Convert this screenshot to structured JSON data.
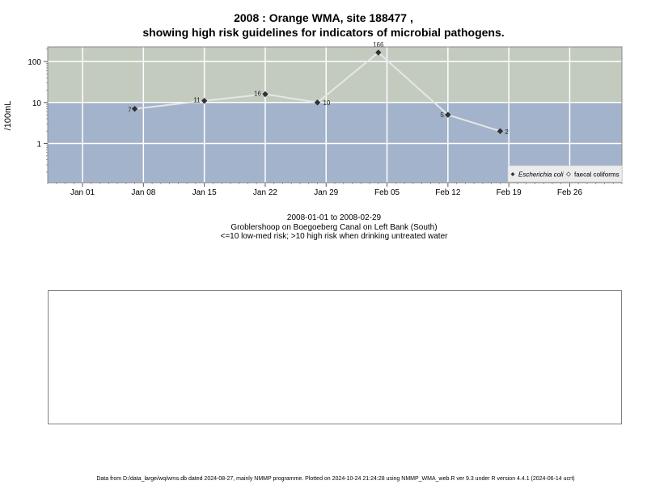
{
  "header": {
    "title_line1": "2008 : Orange WMA, site 188477 ,",
    "title_line2": "showing high risk guidelines for indicators of microbial pathogens."
  },
  "subtitle": {
    "line1": "2008-01-01 to 2008-02-29",
    "line2": "Groblershoop on Boegoeberg Canal on Left Bank (South)",
    "line3": "<=10 low-med risk; >10 high risk when drinking untreated water"
  },
  "footer": {
    "text": "Data from D:/data_large/wq/wms.db dated 2024-08-27, mainly NMMP programme. Plotted on 2024-10-24 21:24:28 using NMMP_WMA_web.R ver 9.3 under R version 4.4.1 (2024-06-14 ucrt)"
  },
  "chart_data": {
    "type": "line",
    "ylabel": "/100mL",
    "y_scale": "log10",
    "threshold": 10,
    "zones": {
      "low_med_risk_color": "#a3b3cb",
      "high_risk_color": "#c3cbbf"
    },
    "xlim": [
      "2007-12-28",
      "2008-03-03"
    ],
    "x_ticks": [
      {
        "date": "2008-01-01",
        "label": "Jan 01"
      },
      {
        "date": "2008-01-08",
        "label": "Jan 08"
      },
      {
        "date": "2008-01-15",
        "label": "Jan 15"
      },
      {
        "date": "2008-01-22",
        "label": "Jan 22"
      },
      {
        "date": "2008-01-29",
        "label": "Jan 29"
      },
      {
        "date": "2008-02-05",
        "label": "Feb 05"
      },
      {
        "date": "2008-02-12",
        "label": "Feb 12"
      },
      {
        "date": "2008-02-19",
        "label": "Feb 19"
      },
      {
        "date": "2008-02-26",
        "label": "Feb 26"
      }
    ],
    "y_ticks": [
      {
        "value": 1,
        "label": "1"
      },
      {
        "value": 10,
        "label": "10"
      },
      {
        "value": 100,
        "label": "100"
      }
    ],
    "series": [
      {
        "name": "Escherichia coli",
        "marker": "filled-diamond",
        "color": "#e6e6e6",
        "points": [
          {
            "x": "2008-01-07",
            "y": 7,
            "label": "7"
          },
          {
            "x": "2008-01-15",
            "y": 11,
            "label": "11"
          },
          {
            "x": "2008-01-22",
            "y": 16,
            "label": "16"
          },
          {
            "x": "2008-01-28",
            "y": 10,
            "label": "10"
          },
          {
            "x": "2008-02-04",
            "y": 166,
            "label": "166"
          },
          {
            "x": "2008-02-12",
            "y": 5,
            "label": "5"
          },
          {
            "x": "2008-02-18",
            "y": 2,
            "label": "2"
          }
        ]
      },
      {
        "name": "faecal coliforms",
        "marker": "open-diamond",
        "color": "#e6e6e6",
        "points": []
      }
    ],
    "legend": {
      "position": "bottom-right"
    }
  }
}
